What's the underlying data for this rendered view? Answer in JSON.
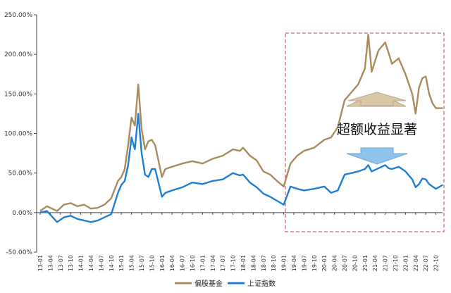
{
  "chart_data": {
    "type": "line",
    "title": "",
    "xlabel": "",
    "ylabel": "",
    "ylim": [
      -0.5,
      2.5
    ],
    "yticks": [
      "-50.00%",
      "0.00%",
      "50.00%",
      "100.00%",
      "150.00%",
      "200.00%",
      "250.00%"
    ],
    "ytick_values": [
      -0.5,
      0,
      0.5,
      1.0,
      1.5,
      2.0,
      2.5
    ],
    "x_tick_labels": [
      "13-01",
      "13-04",
      "13-07",
      "13-10",
      "14-01",
      "14-04",
      "14-07",
      "14-10",
      "15-01",
      "15-04",
      "15-07",
      "15-10",
      "16-01",
      "16-04",
      "16-07",
      "16-10",
      "17-01",
      "17-04",
      "17-07",
      "17-10",
      "18-01",
      "18-04",
      "18-07",
      "18-10",
      "19-01",
      "19-04",
      "19-07",
      "19-10",
      "20-01",
      "20-04",
      "20-07",
      "20-10",
      "21-01",
      "21-04",
      "21-07",
      "21-10",
      "22-01",
      "22-04",
      "22-07",
      "22-10"
    ],
    "series": [
      {
        "name": "偏股基金",
        "color": "#a88c5e",
        "x": [
          "13-01",
          "13-03",
          "13-06",
          "13-08",
          "13-10",
          "13-12",
          "14-02",
          "14-04",
          "14-06",
          "14-08",
          "14-10",
          "14-12",
          "15-01",
          "15-02",
          "15-03",
          "15-04",
          "15-05",
          "15-06",
          "15-07",
          "15-08",
          "15-09",
          "15-10",
          "15-11",
          "16-01",
          "16-02",
          "16-04",
          "16-07",
          "16-10",
          "17-01",
          "17-04",
          "17-07",
          "17-10",
          "17-12",
          "18-01",
          "18-03",
          "18-05",
          "18-07",
          "18-09",
          "18-11",
          "19-01",
          "19-03",
          "19-05",
          "19-07",
          "19-10",
          "20-01",
          "20-03",
          "20-05",
          "20-07",
          "20-09",
          "20-11",
          "21-01",
          "21-02",
          "21-03",
          "21-05",
          "21-07",
          "21-08",
          "21-09",
          "21-11",
          "22-01",
          "22-03",
          "22-04",
          "22-05",
          "22-06",
          "22-07",
          "22-08",
          "22-09",
          "22-10",
          "22-12"
        ],
        "values": [
          0.02,
          0.08,
          0.02,
          0.1,
          0.12,
          0.08,
          0.1,
          0.05,
          0.06,
          0.1,
          0.18,
          0.4,
          0.45,
          0.55,
          0.85,
          1.2,
          1.1,
          1.62,
          1.05,
          0.8,
          0.9,
          0.92,
          0.85,
          0.45,
          0.55,
          0.58,
          0.62,
          0.65,
          0.62,
          0.68,
          0.72,
          0.8,
          0.78,
          0.82,
          0.72,
          0.66,
          0.52,
          0.48,
          0.4,
          0.33,
          0.62,
          0.72,
          0.78,
          0.82,
          0.92,
          0.95,
          1.08,
          1.42,
          1.52,
          1.62,
          1.82,
          2.25,
          1.78,
          2.05,
          2.15,
          2.02,
          1.88,
          1.95,
          1.75,
          1.5,
          1.25,
          1.58,
          1.7,
          1.72,
          1.5,
          1.38,
          1.32,
          1.32
        ]
      },
      {
        "name": "上证指数",
        "color": "#1f7fd3",
        "x": [
          "13-01",
          "13-03",
          "13-06",
          "13-08",
          "13-10",
          "13-12",
          "14-02",
          "14-04",
          "14-06",
          "14-08",
          "14-10",
          "14-12",
          "15-01",
          "15-02",
          "15-03",
          "15-04",
          "15-05",
          "15-06",
          "15-07",
          "15-08",
          "15-09",
          "15-10",
          "15-11",
          "16-01",
          "16-02",
          "16-04",
          "16-07",
          "16-10",
          "17-01",
          "17-04",
          "17-07",
          "17-10",
          "17-12",
          "18-01",
          "18-03",
          "18-05",
          "18-07",
          "18-09",
          "18-11",
          "19-01",
          "19-03",
          "19-05",
          "19-07",
          "19-10",
          "20-01",
          "20-03",
          "20-05",
          "20-07",
          "20-09",
          "20-11",
          "21-01",
          "21-02",
          "21-03",
          "21-05",
          "21-07",
          "21-08",
          "21-09",
          "21-11",
          "22-01",
          "22-03",
          "22-04",
          "22-05",
          "22-06",
          "22-07",
          "22-08",
          "22-09",
          "22-10",
          "22-12"
        ],
        "values": [
          0.0,
          0.02,
          -0.12,
          -0.06,
          -0.04,
          -0.08,
          -0.1,
          -0.12,
          -0.1,
          -0.06,
          -0.02,
          0.25,
          0.35,
          0.4,
          0.6,
          0.95,
          0.8,
          1.25,
          0.75,
          0.48,
          0.45,
          0.55,
          0.55,
          0.2,
          0.25,
          0.28,
          0.32,
          0.38,
          0.36,
          0.4,
          0.42,
          0.5,
          0.47,
          0.48,
          0.38,
          0.32,
          0.24,
          0.2,
          0.15,
          0.1,
          0.33,
          0.3,
          0.28,
          0.3,
          0.33,
          0.25,
          0.28,
          0.48,
          0.5,
          0.52,
          0.55,
          0.6,
          0.52,
          0.56,
          0.6,
          0.56,
          0.55,
          0.58,
          0.52,
          0.42,
          0.32,
          0.36,
          0.43,
          0.42,
          0.36,
          0.33,
          0.3,
          0.35
        ]
      }
    ],
    "legend": {
      "placement": "bottom-center",
      "entries": [
        "偏股基金",
        "上证指数"
      ]
    },
    "annotations": [
      {
        "text": "超额收益显著"
      }
    ],
    "highlight_box": {
      "x_range": [
        "19-04",
        "22-12"
      ],
      "style": "dashed",
      "color": "#c0405a"
    },
    "arrows": [
      {
        "direction": "up",
        "color": "#d9c9a8",
        "near": "偏股基金"
      },
      {
        "direction": "down",
        "color": "#8ec3ec",
        "near": "上证指数"
      }
    ],
    "grid": false
  }
}
